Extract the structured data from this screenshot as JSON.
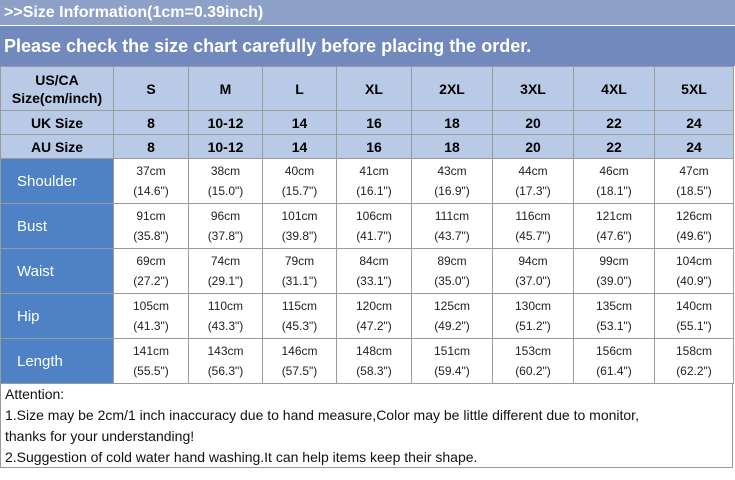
{
  "header": {
    "title": ">>Size Information(1cm=0.39inch)",
    "notice": "Please check the size chart carefully before placing the order."
  },
  "table": {
    "head": {
      "corner_line1": "US/CA",
      "corner_line2": "Size(cm/inch)",
      "sizes": [
        "S",
        "M",
        "L",
        "XL",
        "2XL",
        "3XL",
        "4XL",
        "5XL"
      ]
    },
    "uk": {
      "label": "UK Size",
      "values": [
        "8",
        "10-12",
        "14",
        "16",
        "18",
        "20",
        "22",
        "24"
      ]
    },
    "au": {
      "label": "AU Size",
      "values": [
        "8",
        "10-12",
        "14",
        "16",
        "18",
        "20",
        "22",
        "24"
      ]
    },
    "rows": [
      {
        "label": "Shoulder",
        "cm": [
          "37cm",
          "38cm",
          "40cm",
          "41cm",
          "43cm",
          "44cm",
          "46cm",
          "47cm"
        ],
        "inch": [
          "(14.6\")",
          "(15.0\")",
          "(15.7\")",
          "(16.1\")",
          "(16.9\")",
          "(17.3\")",
          "(18.1\")",
          "(18.5\")"
        ]
      },
      {
        "label": "Bust",
        "cm": [
          "91cm",
          "96cm",
          "101cm",
          "106cm",
          "111cm",
          "116cm",
          "121cm",
          "126cm"
        ],
        "inch": [
          "(35.8\")",
          "(37.8\")",
          "(39.8\")",
          "(41.7\")",
          "(43.7\")",
          "(45.7\")",
          "(47.6\")",
          "(49.6\")"
        ]
      },
      {
        "label": "Waist",
        "cm": [
          "69cm",
          "74cm",
          "79cm",
          "84cm",
          "89cm",
          "94cm",
          "99cm",
          "104cm"
        ],
        "inch": [
          "(27.2\")",
          "(29.1\")",
          "(31.1\")",
          "(33.1\")",
          "(35.0\")",
          "(37.0\")",
          "(39.0\")",
          "(40.9\")"
        ]
      },
      {
        "label": "Hip",
        "cm": [
          "105cm",
          "110cm",
          "115cm",
          "120cm",
          "125cm",
          "130cm",
          "135cm",
          "140cm"
        ],
        "inch": [
          "(41.3\")",
          "(43.3\")",
          "(45.3\")",
          "(47.2\")",
          "(49.2\")",
          "(51.2\")",
          "(53.1\")",
          "(55.1\")"
        ]
      },
      {
        "label": "Length",
        "cm": [
          "141cm",
          "143cm",
          "146cm",
          "148cm",
          "151cm",
          "153cm",
          "156cm",
          "158cm"
        ],
        "inch": [
          "(55.5\")",
          "(56.3\")",
          "(57.5\")",
          "(58.3\")",
          "(59.4\")",
          "(60.2\")",
          "(61.4\")",
          "(62.2\")"
        ]
      }
    ]
  },
  "notes": {
    "heading": "Attention:",
    "line1": "1.Size may be 2cm/1 inch inaccuracy due to hand measure,Color may be little different due to monitor,",
    "line2": "thanks for your understanding!",
    "line3": "2.Suggestion of cold water hand washing.It can help items keep their shape."
  }
}
